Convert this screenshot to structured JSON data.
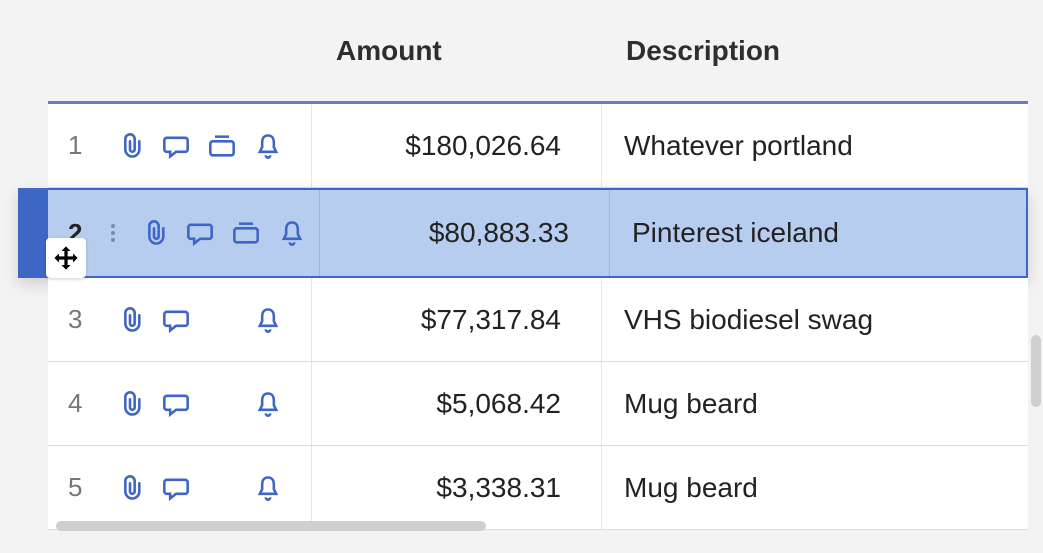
{
  "colors": {
    "page_bg": "#f3f3f3",
    "row_bg": "#ffffff",
    "selected_bg": "#b7cdef",
    "selected_border": "#3e66c4",
    "header_border": "#6a7fb8",
    "icon_stroke": "#3e66c4",
    "rownum_color": "#777777",
    "text_color": "#222222",
    "cell_border": "#e5e5e5",
    "scrollbar": "#cfcfcf"
  },
  "table": {
    "headers": {
      "amount": "Amount",
      "description": "Description"
    },
    "rows": [
      {
        "index": "1",
        "amount": "$180,026.64",
        "description": "Whatever portland",
        "icons": [
          "attachment",
          "comment",
          "card",
          "bell"
        ],
        "selected": false
      },
      {
        "index": "2",
        "amount": "$80,883.33",
        "description": "Pinterest iceland",
        "icons": [
          "attachment",
          "comment",
          "card",
          "bell"
        ],
        "selected": true
      },
      {
        "index": "3",
        "amount": "$77,317.84",
        "description": "VHS biodiesel swag",
        "icons": [
          "attachment",
          "comment",
          "bell"
        ],
        "selected": false
      },
      {
        "index": "4",
        "amount": "$5,068.42",
        "description": "Mug beard",
        "icons": [
          "attachment",
          "comment",
          "bell"
        ],
        "selected": false
      },
      {
        "index": "5",
        "amount": "$3,338.31",
        "description": "Mug beard",
        "icons": [
          "attachment",
          "comment",
          "bell"
        ],
        "selected": false
      }
    ]
  }
}
